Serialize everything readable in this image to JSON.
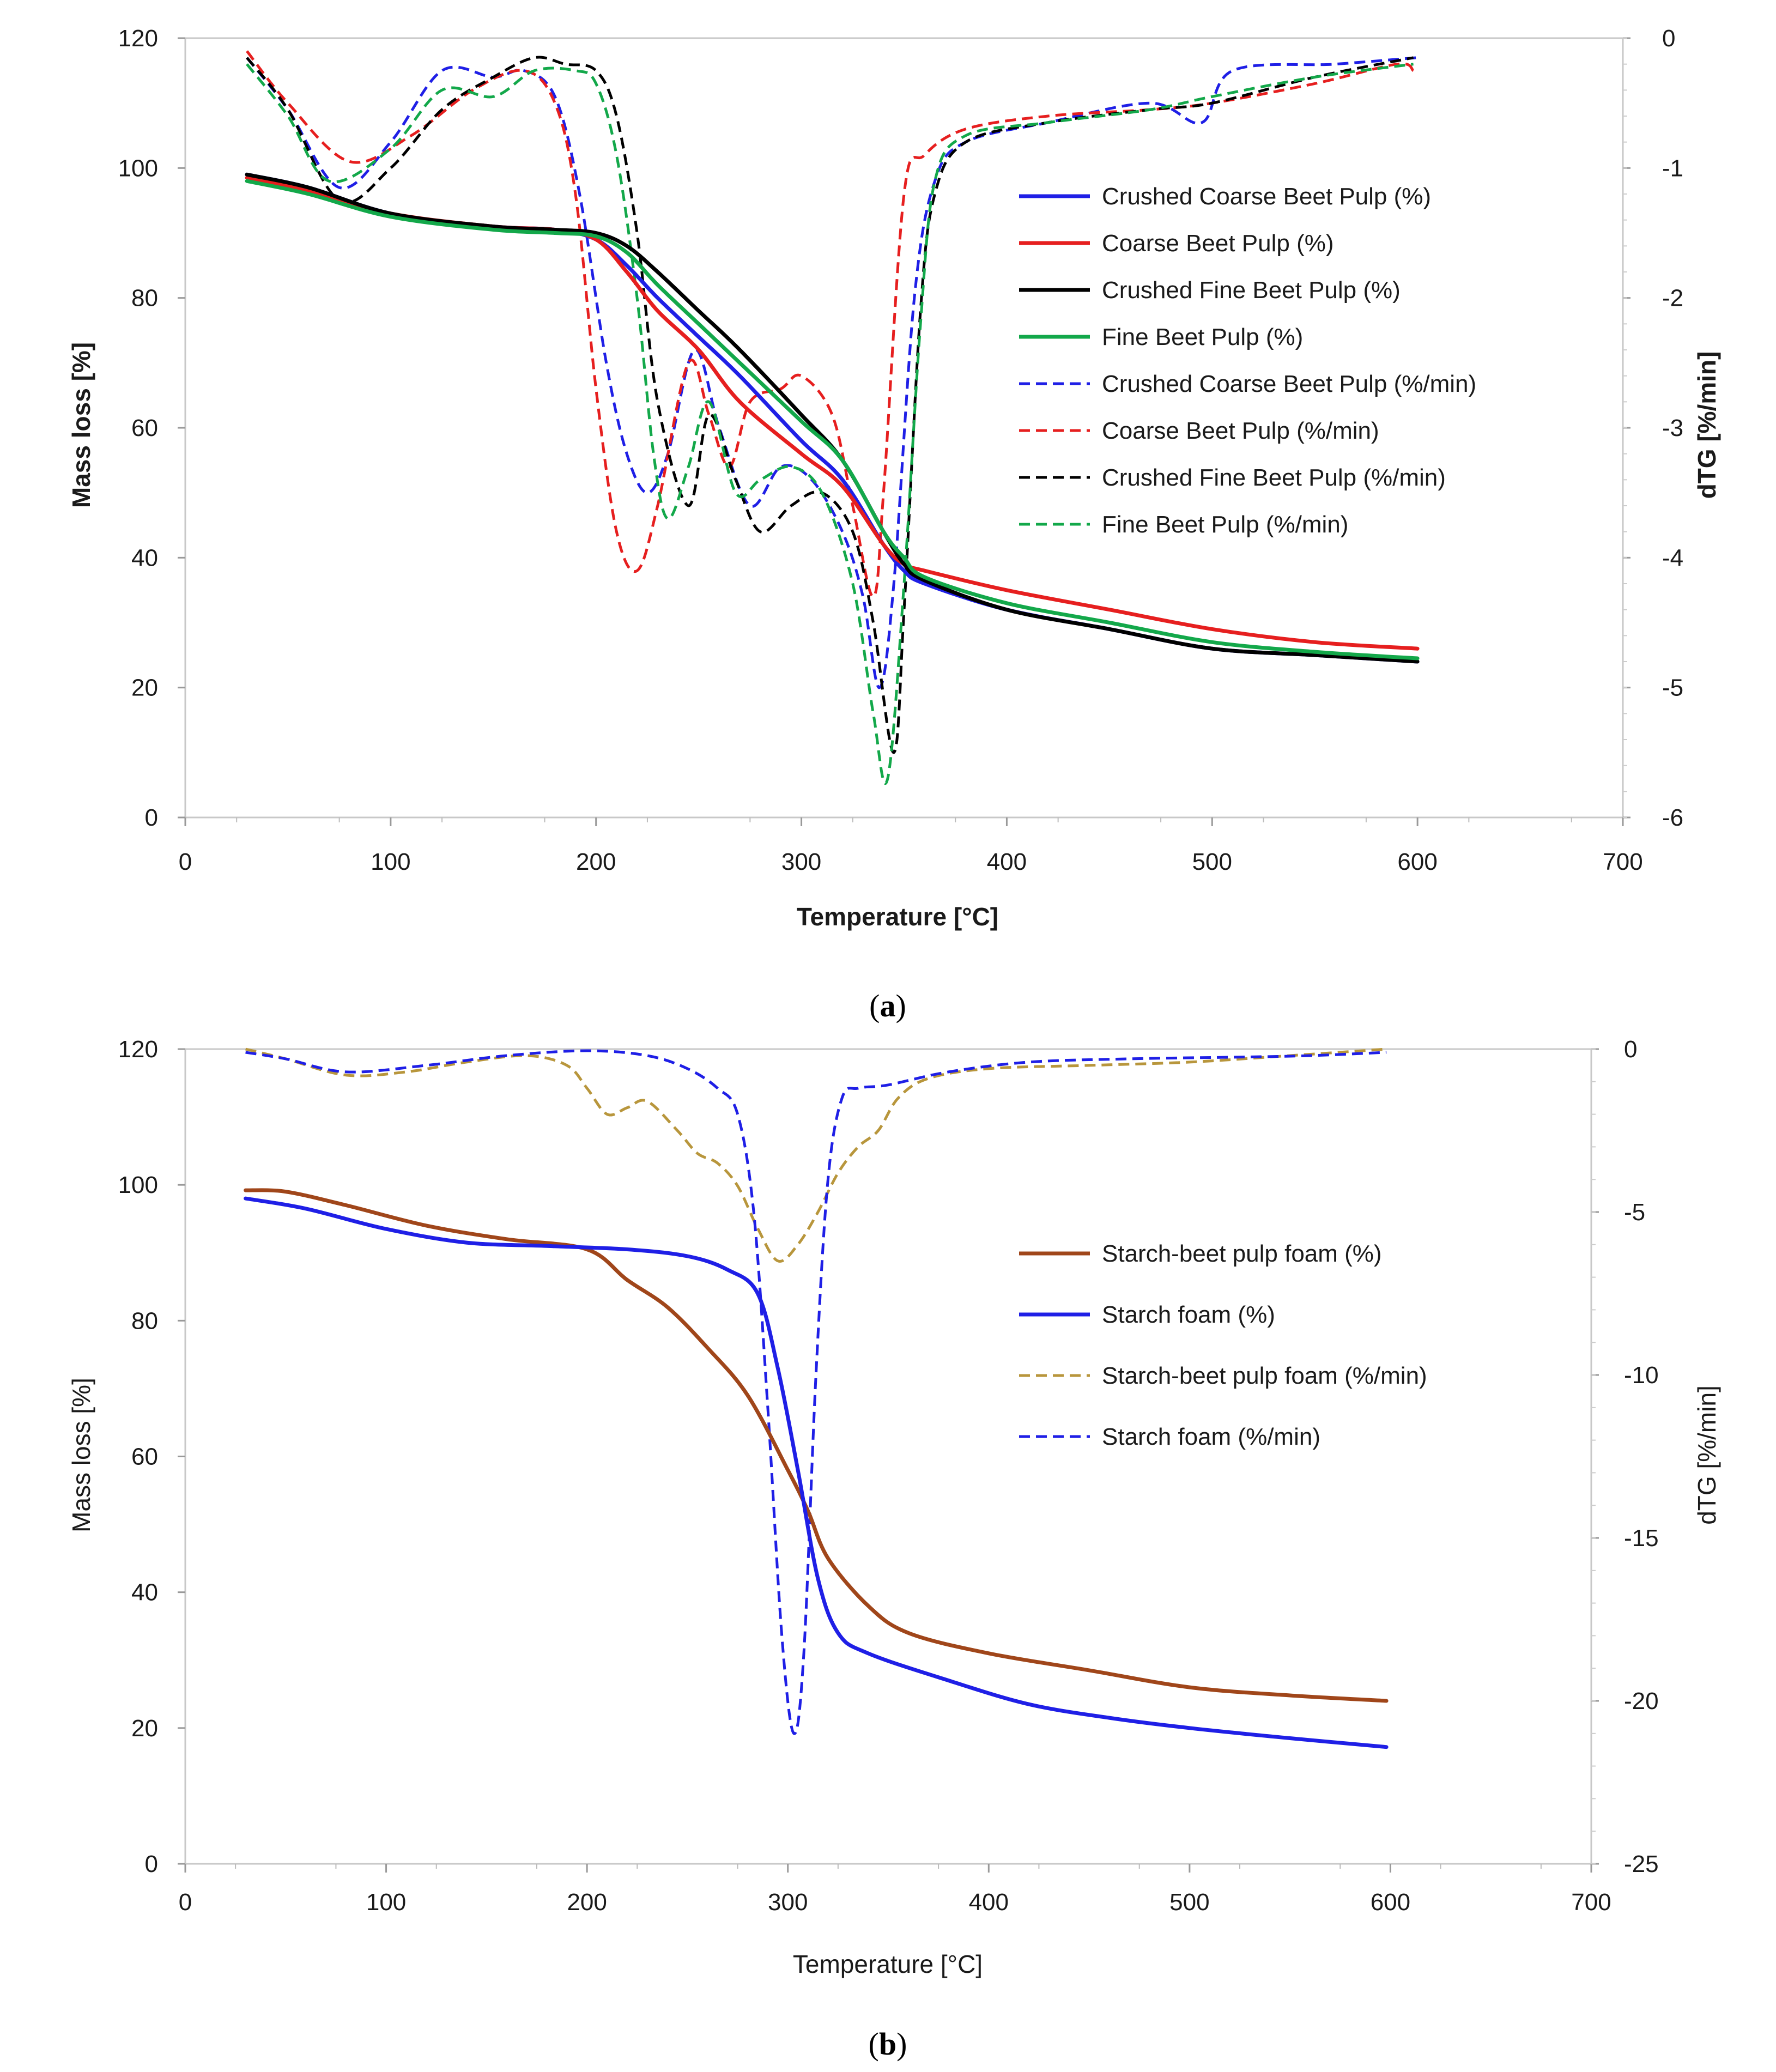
{
  "chart_data": [
    {
      "id": "a",
      "type": "line",
      "caption_open": "(",
      "caption_letter": "a",
      "caption_close": ")",
      "xlabel": "Temperature [°C]",
      "ylabel": "Mass loss [%]",
      "y2label": "dTG [%/min]",
      "xlim": [
        0,
        700
      ],
      "ylim": [
        0,
        120
      ],
      "y2lim": [
        -6,
        0
      ],
      "xticks": [
        0,
        100,
        200,
        300,
        400,
        500,
        600,
        700
      ],
      "yticks": [
        0,
        20,
        40,
        60,
        80,
        100,
        120
      ],
      "y2ticks": [
        -6,
        -5,
        -4,
        -3,
        -2,
        -1,
        0
      ],
      "legend_position": "right-center",
      "series": [
        {
          "name": "Crushed Coarse Beet Pulp (%)",
          "axis": "left",
          "style": "solid",
          "color": "#1f1fe6",
          "x": [
            30,
            60,
            100,
            150,
            180,
            200,
            215,
            230,
            250,
            270,
            300,
            320,
            340,
            350,
            360,
            400,
            450,
            500,
            550,
            600
          ],
          "y": [
            99,
            97,
            93,
            91,
            90.5,
            89,
            85,
            80,
            74,
            68,
            58,
            52,
            42,
            38,
            36,
            32,
            29,
            26,
            25,
            24
          ]
        },
        {
          "name": "Coarse Beet Pulp (%)",
          "axis": "left",
          "style": "solid",
          "color": "#e61f1f",
          "x": [
            30,
            60,
            100,
            150,
            180,
            200,
            215,
            230,
            250,
            270,
            300,
            320,
            340,
            350,
            360,
            400,
            450,
            500,
            550,
            600
          ],
          "y": [
            98.5,
            96.5,
            93,
            91,
            90.5,
            89,
            84,
            78,
            72,
            64,
            56,
            51,
            42,
            39,
            38,
            35,
            32,
            29,
            27,
            26
          ]
        },
        {
          "name": "Crushed Fine Beet Pulp (%)",
          "axis": "left",
          "style": "solid",
          "color": "#000000",
          "x": [
            30,
            60,
            100,
            150,
            180,
            200,
            215,
            230,
            250,
            270,
            300,
            320,
            340,
            350,
            360,
            400,
            450,
            500,
            550,
            600
          ],
          "y": [
            99,
            97,
            93,
            91,
            90.5,
            90,
            88,
            84,
            78,
            72,
            62,
            55,
            44,
            39,
            36.5,
            32,
            29,
            26,
            25,
            24
          ]
        },
        {
          "name": "Fine Beet Pulp (%)",
          "axis": "left",
          "style": "solid",
          "color": "#13a84a",
          "x": [
            30,
            60,
            100,
            150,
            180,
            200,
            215,
            230,
            250,
            270,
            300,
            320,
            340,
            350,
            360,
            400,
            450,
            500,
            550,
            600
          ],
          "y": [
            98,
            96,
            92.5,
            90.5,
            90,
            89.5,
            87,
            82,
            76,
            70,
            61,
            55,
            44,
            40,
            37,
            33,
            30,
            27,
            25.5,
            24.5
          ]
        },
        {
          "name": "Crushed Coarse Beet Pulp (%/min)",
          "axis": "right",
          "style": "dashed",
          "color": "#1f1fe6",
          "x": [
            30,
            50,
            75,
            100,
            125,
            150,
            165,
            180,
            192,
            205,
            215,
            225,
            235,
            248,
            260,
            275,
            290,
            305,
            320,
            330,
            338,
            345,
            355,
            365,
            380,
            420,
            470,
            495,
            510,
            560,
            600
          ],
          "y": [
            -0.15,
            -0.55,
            -1.15,
            -0.8,
            -0.25,
            -0.3,
            -0.25,
            -0.45,
            -1.2,
            -2.5,
            -3.2,
            -3.5,
            -3.2,
            -2.4,
            -3.0,
            -3.6,
            -3.3,
            -3.4,
            -3.8,
            -4.3,
            -5.0,
            -4.2,
            -2.0,
            -1.1,
            -0.8,
            -0.65,
            -0.5,
            -0.65,
            -0.25,
            -0.2,
            -0.15
          ]
        },
        {
          "name": "Coarse Beet Pulp (%/min)",
          "axis": "right",
          "style": "dashed",
          "color": "#e61f1f",
          "x": [
            30,
            50,
            80,
            110,
            140,
            165,
            180,
            190,
            200,
            210,
            220,
            230,
            245,
            255,
            265,
            275,
            290,
            300,
            315,
            325,
            335,
            340,
            350,
            360,
            380,
            420,
            470,
            500,
            550,
            590,
            598
          ],
          "y": [
            -0.1,
            -0.5,
            -0.95,
            -0.75,
            -0.4,
            -0.25,
            -0.5,
            -1.2,
            -2.7,
            -3.8,
            -4.1,
            -3.6,
            -2.5,
            -2.9,
            -3.3,
            -2.8,
            -2.7,
            -2.6,
            -2.9,
            -3.6,
            -4.3,
            -3.5,
            -1.2,
            -0.9,
            -0.7,
            -0.6,
            -0.55,
            -0.5,
            -0.35,
            -0.2,
            -0.25
          ]
        },
        {
          "name": "Crushed Fine Beet Pulp (%/min)",
          "axis": "right",
          "style": "dashed",
          "color": "#000000",
          "x": [
            30,
            50,
            75,
            100,
            125,
            150,
            170,
            185,
            200,
            210,
            220,
            230,
            245,
            255,
            268,
            280,
            295,
            310,
            325,
            335,
            345,
            350,
            358,
            365,
            380,
            420,
            470,
            500,
            550,
            598
          ],
          "y": [
            -0.15,
            -0.55,
            -1.25,
            -1.0,
            -0.55,
            -0.3,
            -0.15,
            -0.2,
            -0.25,
            -0.6,
            -1.5,
            -2.8,
            -3.6,
            -2.9,
            -3.4,
            -3.8,
            -3.6,
            -3.5,
            -3.8,
            -4.5,
            -5.5,
            -4.4,
            -2.1,
            -1.2,
            -0.8,
            -0.65,
            -0.55,
            -0.5,
            -0.3,
            -0.15
          ]
        },
        {
          "name": "Fine Beet Pulp (%/min)",
          "axis": "right",
          "style": "dashed",
          "color": "#13a84a",
          "x": [
            30,
            50,
            70,
            100,
            125,
            150,
            170,
            190,
            200,
            210,
            220,
            228,
            235,
            245,
            255,
            268,
            280,
            295,
            310,
            325,
            335,
            342,
            350,
            358,
            365,
            380,
            420,
            470,
            500,
            550,
            598
          ],
          "y": [
            -0.2,
            -0.6,
            -1.1,
            -0.85,
            -0.4,
            -0.45,
            -0.25,
            -0.25,
            -0.35,
            -0.9,
            -2.0,
            -3.2,
            -3.7,
            -3.3,
            -2.8,
            -3.5,
            -3.4,
            -3.3,
            -3.5,
            -4.2,
            -5.2,
            -5.7,
            -4.2,
            -2.2,
            -1.1,
            -0.75,
            -0.65,
            -0.55,
            -0.45,
            -0.3,
            -0.2
          ]
        }
      ]
    },
    {
      "id": "b",
      "type": "line",
      "caption_open": "(",
      "caption_letter": "b",
      "caption_close": ")",
      "xlabel": "Temperature [°C]",
      "ylabel": "Mass loss [%]",
      "y2label": "dTG [%/min]",
      "xlim": [
        0,
        700
      ],
      "ylim": [
        0,
        120
      ],
      "y2lim": [
        -25,
        0
      ],
      "xticks": [
        0,
        100,
        200,
        300,
        400,
        500,
        600,
        700
      ],
      "yticks": [
        0,
        20,
        40,
        60,
        80,
        100,
        120
      ],
      "y2ticks": [
        -25,
        -20,
        -15,
        -10,
        -5,
        0
      ],
      "legend_position": "right-center",
      "series": [
        {
          "name": "Starch-beet pulp foam (%)",
          "axis": "left",
          "style": "solid",
          "color": "#a0461a",
          "x": [
            30,
            50,
            80,
            120,
            160,
            200,
            220,
            240,
            260,
            280,
            300,
            310,
            320,
            340,
            360,
            400,
            450,
            500,
            550,
            598
          ],
          "y": [
            99.2,
            99,
            97,
            94,
            92,
            90.5,
            86,
            82,
            76,
            69,
            58,
            52,
            45,
            38,
            34,
            31,
            28.5,
            26,
            24.8,
            24
          ]
        },
        {
          "name": "Starch foam (%)",
          "axis": "left",
          "style": "solid",
          "color": "#1f1fe6",
          "x": [
            30,
            60,
            100,
            140,
            180,
            220,
            250,
            270,
            285,
            295,
            305,
            315,
            325,
            340,
            380,
            420,
            460,
            500,
            550,
            598
          ],
          "y": [
            98,
            96.5,
            93.5,
            91.5,
            91,
            90.5,
            89.5,
            87.5,
            84,
            73,
            58,
            42,
            34,
            31,
            27,
            23.5,
            21.5,
            20,
            18.5,
            17.2
          ]
        },
        {
          "name": "Starch-beet pulp foam  (%/min)",
          "axis": "right",
          "style": "dashed",
          "color": "#b8963c",
          "x": [
            30,
            50,
            80,
            110,
            140,
            170,
            190,
            200,
            210,
            220,
            230,
            245,
            255,
            265,
            275,
            285,
            295,
            305,
            315,
            325,
            335,
            345,
            355,
            370,
            400,
            450,
            500,
            550,
            598
          ],
          "y": [
            0,
            -0.3,
            -0.8,
            -0.7,
            -0.4,
            -0.2,
            -0.5,
            -1.2,
            -2.0,
            -1.8,
            -1.6,
            -2.5,
            -3.2,
            -3.5,
            -4.2,
            -5.5,
            -6.5,
            -6.0,
            -5.0,
            -3.8,
            -3.0,
            -2.5,
            -1.5,
            -0.9,
            -0.6,
            -0.5,
            -0.4,
            -0.2,
            0
          ]
        },
        {
          "name": "Starch foam (%/min)",
          "axis": "right",
          "style": "dashed",
          "color": "#1f1fe6",
          "x": [
            30,
            50,
            80,
            120,
            160,
            200,
            230,
            250,
            265,
            275,
            283,
            290,
            297,
            303,
            308,
            314,
            320,
            327,
            335,
            350,
            380,
            420,
            470,
            520,
            560,
            598
          ],
          "y": [
            -0.1,
            -0.3,
            -0.7,
            -0.5,
            -0.2,
            -0.05,
            -0.2,
            -0.6,
            -1.2,
            -2.0,
            -5.0,
            -11.0,
            -18.0,
            -21.0,
            -18.5,
            -10.0,
            -4.0,
            -1.5,
            -1.2,
            -1.1,
            -0.7,
            -0.4,
            -0.3,
            -0.25,
            -0.2,
            -0.1
          ]
        }
      ]
    }
  ]
}
